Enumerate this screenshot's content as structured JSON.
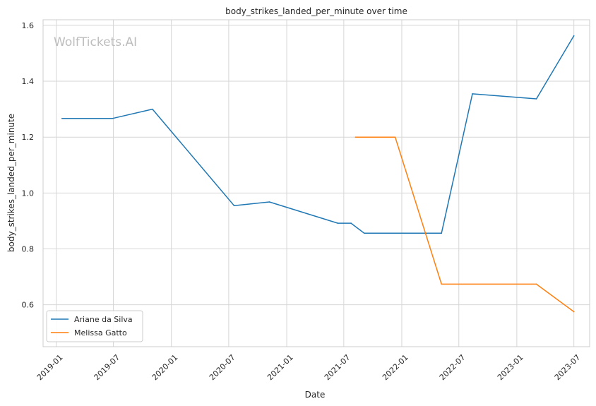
{
  "chart_data": {
    "type": "line",
    "title": "body_strikes_landed_per_minute over time",
    "xlabel": "Date",
    "ylabel": "body_strikes_landed_per_minute",
    "watermark": "WolfTickets.AI",
    "ylim": [
      0.45,
      1.62
    ],
    "xlim": [
      "2018-11-20",
      "2023-08-20"
    ],
    "grid": true,
    "legend_position": "lower-left",
    "x_ticks": [
      "2019-01",
      "2019-07",
      "2020-01",
      "2020-07",
      "2021-01",
      "2021-07",
      "2022-01",
      "2022-07",
      "2023-01",
      "2023-07"
    ],
    "y_ticks": [
      "0.6",
      "0.8",
      "1.0",
      "1.2",
      "1.4",
      "1.6"
    ],
    "series": [
      {
        "name": "Ariane da Silva",
        "color": "#1f77b4",
        "points": [
          {
            "x": "2019-01-19",
            "y": 1.267
          },
          {
            "x": "2019-06-29",
            "y": 1.267
          },
          {
            "x": "2019-11-02",
            "y": 1.3
          },
          {
            "x": "2020-07-18",
            "y": 0.955
          },
          {
            "x": "2020-11-07",
            "y": 0.968
          },
          {
            "x": "2021-06-12",
            "y": 0.892
          },
          {
            "x": "2021-07-24",
            "y": 0.892
          },
          {
            "x": "2021-09-04",
            "y": 0.856
          },
          {
            "x": "2022-05-07",
            "y": 0.856
          },
          {
            "x": "2022-08-13",
            "y": 1.355
          },
          {
            "x": "2023-03-04",
            "y": 1.337
          },
          {
            "x": "2023-07-01",
            "y": 1.563
          }
        ]
      },
      {
        "name": "Melissa Gatto",
        "color": "#ff7f0e",
        "points": [
          {
            "x": "2021-08-07",
            "y": 1.2
          },
          {
            "x": "2021-12-11",
            "y": 1.2
          },
          {
            "x": "2022-05-07",
            "y": 0.674
          },
          {
            "x": "2023-03-04",
            "y": 0.674
          },
          {
            "x": "2023-07-01",
            "y": 0.575
          }
        ]
      }
    ]
  }
}
